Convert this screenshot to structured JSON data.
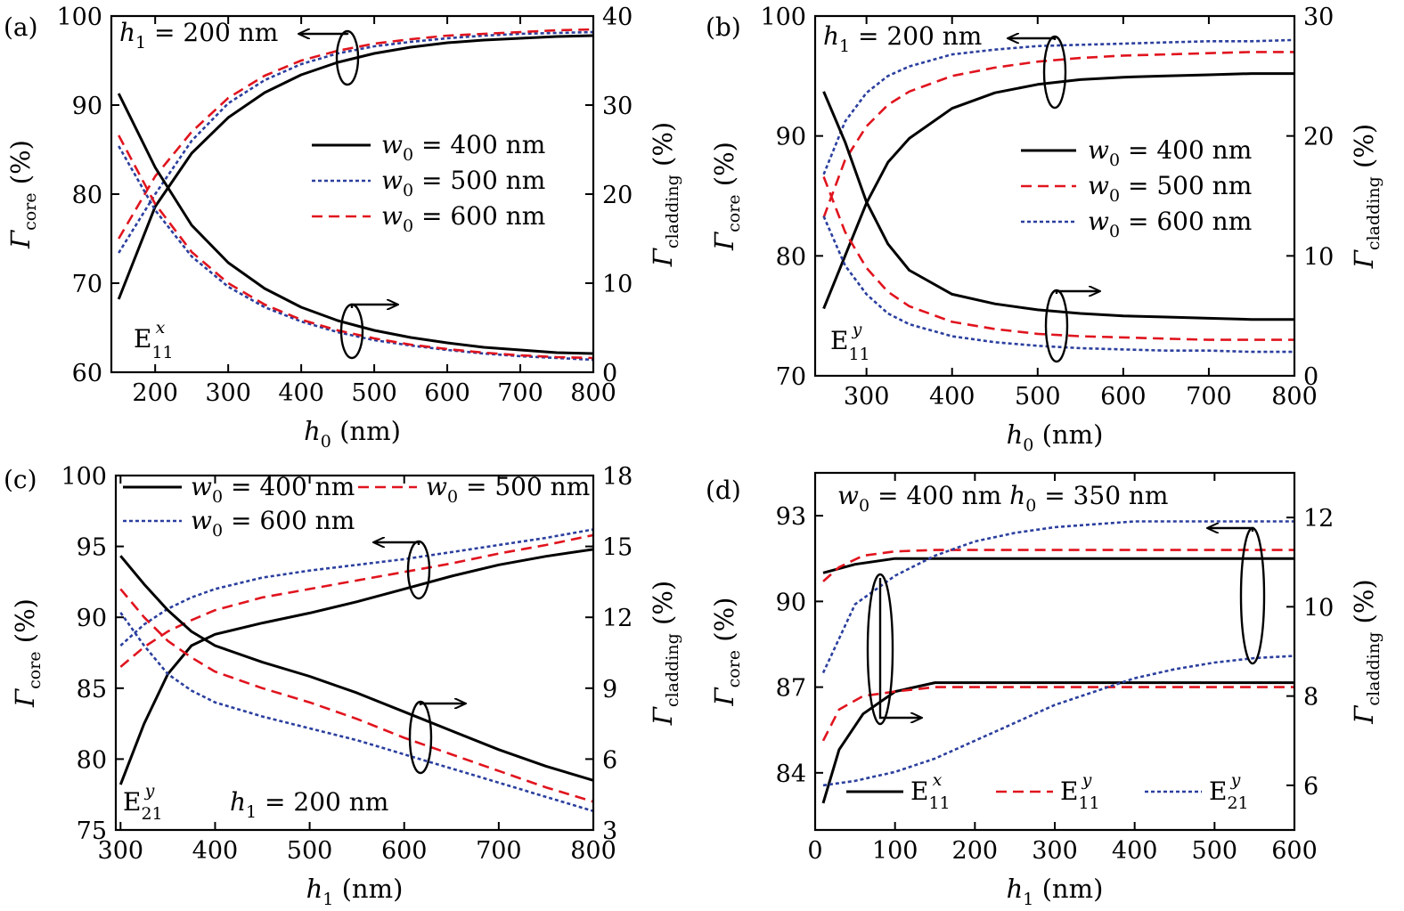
{
  "chart_data": [
    {
      "type": "line",
      "panel_label": "(a)",
      "xlabel": "h0 (nm)",
      "ylabel_left": "Γcore (%)",
      "ylabel_right": "Γcladding (%)",
      "xlim": [
        140,
        800
      ],
      "ylim_left": [
        60,
        100
      ],
      "ylim_right": [
        0,
        40
      ],
      "xticks": [
        200,
        300,
        400,
        500,
        600,
        700,
        800
      ],
      "yticks_left": [
        60,
        70,
        80,
        90,
        100
      ],
      "yticks_right": [
        0,
        10,
        20,
        30,
        40
      ],
      "annotations": [
        "h1 = 200 nm",
        "E11x"
      ],
      "legend": [
        {
          "label": "w0 = 400 nm",
          "color": "#000000",
          "style": "solid"
        },
        {
          "label": "w0 = 500 nm",
          "color": "#2b3f9e",
          "style": "dotted"
        },
        {
          "label": "w0 = 600 nm",
          "color": "#e0141e",
          "style": "dashed"
        }
      ],
      "series": [
        {
          "name": "w0 = 400 nm",
          "axis": "left",
          "color": "#000000",
          "style": "solid",
          "x": [
            150,
            200,
            250,
            300,
            350,
            400,
            450,
            500,
            550,
            600,
            650,
            700,
            750,
            800
          ],
          "y": [
            68.2,
            78.6,
            84.6,
            88.6,
            91.4,
            93.4,
            94.8,
            95.8,
            96.5,
            97.0,
            97.3,
            97.5,
            97.7,
            97.8
          ]
        },
        {
          "name": "w0 = 500 nm",
          "axis": "left",
          "color": "#2b3f9e",
          "style": "dotted",
          "x": [
            150,
            200,
            250,
            300,
            350,
            400,
            450,
            500,
            550,
            600,
            650,
            700,
            750,
            800
          ],
          "y": [
            73.4,
            80.0,
            86.0,
            90.2,
            92.8,
            94.6,
            95.8,
            96.6,
            97.1,
            97.5,
            97.8,
            98.0,
            98.1,
            98.2
          ]
        },
        {
          "name": "w0 = 600 nm",
          "axis": "left",
          "color": "#e0141e",
          "style": "dashed",
          "x": [
            150,
            200,
            250,
            300,
            350,
            400,
            450,
            500,
            550,
            600,
            650,
            700,
            750,
            800
          ],
          "y": [
            75.0,
            82.0,
            87.0,
            90.8,
            93.3,
            95.0,
            96.1,
            96.9,
            97.4,
            97.8,
            98.0,
            98.2,
            98.4,
            98.5
          ]
        },
        {
          "name": "w0 = 400 nm",
          "axis": "right",
          "color": "#000000",
          "style": "solid",
          "x": [
            150,
            200,
            250,
            300,
            350,
            400,
            450,
            500,
            550,
            600,
            650,
            700,
            750,
            800
          ],
          "y": [
            31.3,
            23.0,
            16.5,
            12.3,
            9.4,
            7.3,
            5.8,
            4.7,
            3.9,
            3.3,
            2.8,
            2.5,
            2.2,
            2.1
          ]
        },
        {
          "name": "w0 = 500 nm",
          "axis": "right",
          "color": "#2b3f9e",
          "style": "dotted",
          "x": [
            150,
            200,
            250,
            300,
            350,
            400,
            450,
            500,
            550,
            600,
            650,
            700,
            750,
            800
          ],
          "y": [
            25.4,
            18.2,
            13.0,
            9.6,
            7.3,
            5.7,
            4.5,
            3.6,
            3.0,
            2.5,
            2.1,
            1.8,
            1.6,
            1.4
          ]
        },
        {
          "name": "w0 = 600 nm",
          "axis": "right",
          "color": "#e0141e",
          "style": "dashed",
          "x": [
            150,
            200,
            250,
            300,
            350,
            400,
            450,
            500,
            550,
            600,
            650,
            700,
            750,
            800
          ],
          "y": [
            26.6,
            18.9,
            13.5,
            10.0,
            7.6,
            5.9,
            4.7,
            3.8,
            3.1,
            2.6,
            2.2,
            1.9,
            1.7,
            1.6
          ]
        }
      ]
    },
    {
      "type": "line",
      "panel_label": "(b)",
      "xlabel": "h0 (nm)",
      "ylabel_left": "Γcore (%)",
      "ylabel_right": "Γcladding (%)",
      "xlim": [
        240,
        800
      ],
      "ylim_left": [
        70,
        100
      ],
      "ylim_right": [
        0,
        30
      ],
      "xticks": [
        300,
        400,
        500,
        600,
        700,
        800
      ],
      "yticks_left": [
        70,
        80,
        90,
        100
      ],
      "yticks_right": [
        0,
        10,
        20,
        30
      ],
      "annotations": [
        "h1 = 200 nm",
        "E11y"
      ],
      "legend": [
        {
          "label": "w0 = 400 nm",
          "color": "#000000",
          "style": "solid"
        },
        {
          "label": "w0 = 500 nm",
          "color": "#e0141e",
          "style": "dashed"
        },
        {
          "label": "w0 = 600 nm",
          "color": "#2b3f9e",
          "style": "dotted"
        }
      ],
      "series": [
        {
          "name": "w0 = 400 nm",
          "axis": "left",
          "color": "#000000",
          "style": "solid",
          "x": [
            250,
            275,
            300,
            325,
            350,
            400,
            450,
            500,
            550,
            600,
            650,
            700,
            750,
            800
          ],
          "y": [
            75.6,
            80.0,
            84.4,
            87.8,
            89.8,
            92.3,
            93.6,
            94.3,
            94.7,
            94.9,
            95.0,
            95.1,
            95.2,
            95.2
          ]
        },
        {
          "name": "w0 = 500 nm",
          "axis": "left",
          "color": "#e0141e",
          "style": "dashed",
          "x": [
            250,
            275,
            300,
            325,
            350,
            400,
            450,
            500,
            550,
            600,
            650,
            700,
            750,
            800
          ],
          "y": [
            83.2,
            88.0,
            90.8,
            92.6,
            93.7,
            95.0,
            95.7,
            96.2,
            96.5,
            96.7,
            96.8,
            96.9,
            97.0,
            97.0
          ]
        },
        {
          "name": "w0 = 600 nm",
          "axis": "left",
          "color": "#2b3f9e",
          "style": "dotted",
          "x": [
            250,
            275,
            300,
            325,
            350,
            400,
            450,
            500,
            550,
            600,
            650,
            700,
            750,
            800
          ],
          "y": [
            86.8,
            91.2,
            93.6,
            95.0,
            95.8,
            96.8,
            97.2,
            97.5,
            97.6,
            97.7,
            97.8,
            97.9,
            97.9,
            98.0
          ]
        },
        {
          "name": "w0 = 400 nm",
          "axis": "right",
          "color": "#000000",
          "style": "solid",
          "x": [
            250,
            275,
            300,
            325,
            350,
            400,
            450,
            500,
            550,
            600,
            650,
            700,
            750,
            800
          ],
          "y": [
            23.7,
            19.5,
            14.5,
            11.0,
            8.8,
            6.8,
            6.0,
            5.5,
            5.2,
            5.0,
            4.9,
            4.8,
            4.7,
            4.7
          ]
        },
        {
          "name": "w0 = 500 nm",
          "axis": "right",
          "color": "#e0141e",
          "style": "dashed",
          "x": [
            250,
            275,
            300,
            325,
            350,
            400,
            450,
            500,
            550,
            600,
            650,
            700,
            750,
            800
          ],
          "y": [
            16.6,
            12.0,
            9.0,
            7.0,
            5.8,
            4.5,
            3.9,
            3.5,
            3.3,
            3.2,
            3.1,
            3.0,
            3.0,
            3.0
          ]
        },
        {
          "name": "w0 = 600 nm",
          "axis": "right",
          "color": "#2b3f9e",
          "style": "dotted",
          "x": [
            250,
            275,
            300,
            325,
            350,
            400,
            450,
            500,
            550,
            600,
            650,
            700,
            750,
            800
          ],
          "y": [
            13.3,
            9.2,
            6.8,
            5.2,
            4.3,
            3.3,
            2.8,
            2.5,
            2.3,
            2.2,
            2.1,
            2.1,
            2.0,
            2.0
          ]
        }
      ]
    },
    {
      "type": "line",
      "panel_label": "(c)",
      "xlabel": "h1 (nm)",
      "ylabel_left": "Γcore (%)",
      "ylabel_right": "Γcladding (%)",
      "xlim": [
        295,
        800
      ],
      "ylim_left": [
        75,
        100
      ],
      "ylim_right": [
        3,
        18
      ],
      "xticks": [
        300,
        400,
        500,
        600,
        700,
        800
      ],
      "yticks_left": [
        75,
        80,
        85,
        90,
        95,
        100
      ],
      "yticks_right": [
        3,
        6,
        9,
        12,
        15,
        18
      ],
      "annotations": [
        "h1 = 200 nm",
        "E21y"
      ],
      "legend": [
        {
          "label": "w0 = 400 nm",
          "color": "#000000",
          "style": "solid"
        },
        {
          "label": "w0 = 500 nm",
          "color": "#e0141e",
          "style": "dashed"
        },
        {
          "label": "w0 = 600 nm",
          "color": "#2b3f9e",
          "style": "dotted"
        }
      ],
      "series": [
        {
          "name": "w0 = 400 nm",
          "axis": "left",
          "color": "#000000",
          "style": "solid",
          "x": [
            300,
            325,
            350,
            375,
            400,
            450,
            500,
            550,
            600,
            650,
            700,
            750,
            800
          ],
          "y": [
            78.2,
            82.5,
            86.0,
            88.0,
            88.8,
            89.6,
            90.3,
            91.1,
            92.0,
            92.9,
            93.7,
            94.3,
            94.8
          ]
        },
        {
          "name": "w0 = 500 nm",
          "axis": "left",
          "color": "#e0141e",
          "style": "dashed",
          "x": [
            300,
            325,
            350,
            375,
            400,
            450,
            500,
            550,
            600,
            650,
            700,
            750,
            800
          ],
          "y": [
            86.5,
            87.9,
            89.0,
            89.8,
            90.5,
            91.4,
            92.0,
            92.6,
            93.2,
            93.8,
            94.5,
            95.1,
            95.8
          ]
        },
        {
          "name": "w0 = 600 nm",
          "axis": "left",
          "color": "#2b3f9e",
          "style": "dotted",
          "x": [
            300,
            325,
            350,
            375,
            400,
            450,
            500,
            550,
            600,
            650,
            700,
            750,
            800
          ],
          "y": [
            88.0,
            89.5,
            90.6,
            91.4,
            92.0,
            92.8,
            93.3,
            93.7,
            94.1,
            94.6,
            95.1,
            95.6,
            96.2
          ]
        },
        {
          "name": "w0 = 400 nm",
          "axis": "right",
          "color": "#000000",
          "style": "solid",
          "x": [
            300,
            325,
            350,
            375,
            400,
            450,
            500,
            550,
            600,
            650,
            700,
            750,
            800
          ],
          "y": [
            14.6,
            13.4,
            12.3,
            11.4,
            10.8,
            10.1,
            9.5,
            8.8,
            8.0,
            7.2,
            6.4,
            5.7,
            5.1
          ]
        },
        {
          "name": "w0 = 500 nm",
          "axis": "right",
          "color": "#e0141e",
          "style": "dashed",
          "x": [
            300,
            325,
            350,
            375,
            400,
            450,
            500,
            550,
            600,
            650,
            700,
            750,
            800
          ],
          "y": [
            13.2,
            12.0,
            11.0,
            10.3,
            9.7,
            9.0,
            8.4,
            7.7,
            6.9,
            6.2,
            5.5,
            4.8,
            4.2
          ]
        },
        {
          "name": "w0 = 600 nm",
          "axis": "right",
          "color": "#2b3f9e",
          "style": "dotted",
          "x": [
            300,
            325,
            350,
            375,
            400,
            450,
            500,
            550,
            600,
            650,
            700,
            750,
            800
          ],
          "y": [
            12.2,
            10.8,
            9.6,
            8.9,
            8.4,
            7.8,
            7.3,
            6.8,
            6.2,
            5.6,
            5.0,
            4.4,
            3.8
          ]
        }
      ]
    },
    {
      "type": "line",
      "panel_label": "(d)",
      "xlabel": "h1 (nm)",
      "ylabel_left": "Γcore (%)",
      "ylabel_right": "Γcladding (%)",
      "xlim": [
        0,
        600
      ],
      "ylim_left": [
        82,
        94.5
      ],
      "ylim_right": [
        5,
        13
      ],
      "xticks": [
        0,
        100,
        200,
        300,
        400,
        500,
        600
      ],
      "yticks_left": [
        84,
        87,
        90,
        93
      ],
      "yticks_right": [
        6,
        8,
        10,
        12
      ],
      "annotations": [
        "w0 = 400 nm  h0 = 350 nm"
      ],
      "legend": [
        {
          "label": "E11x",
          "color": "#000000",
          "style": "solid"
        },
        {
          "label": "E11y",
          "color": "#e0141e",
          "style": "dashed"
        },
        {
          "label": "E21y",
          "color": "#2b3f9e",
          "style": "dotted"
        }
      ],
      "series": [
        {
          "name": "E11x",
          "axis": "left",
          "color": "#000000",
          "style": "solid",
          "x": [
            10,
            50,
            100,
            150,
            200,
            300,
            400,
            500,
            600
          ],
          "y": [
            91.0,
            91.3,
            91.5,
            91.5,
            91.5,
            91.5,
            91.5,
            91.5,
            91.5
          ]
        },
        {
          "name": "E11y",
          "axis": "left",
          "color": "#e0141e",
          "style": "dashed",
          "x": [
            10,
            30,
            60,
            100,
            150,
            200,
            300,
            400,
            500,
            600
          ],
          "y": [
            90.7,
            91.2,
            91.6,
            91.75,
            91.8,
            91.8,
            91.8,
            91.8,
            91.8,
            91.8
          ]
        },
        {
          "name": "E21y",
          "axis": "left",
          "color": "#2b3f9e",
          "style": "dotted",
          "x": [
            10,
            50,
            100,
            150,
            200,
            250,
            300,
            350,
            400,
            450,
            500,
            550,
            600
          ],
          "y": [
            87.5,
            89.9,
            90.9,
            91.6,
            92.1,
            92.4,
            92.6,
            92.7,
            92.8,
            92.8,
            92.8,
            92.8,
            92.8
          ]
        },
        {
          "name": "E11x",
          "axis": "right",
          "color": "#000000",
          "style": "solid",
          "x": [
            10,
            30,
            60,
            100,
            150,
            200,
            300,
            400,
            500,
            600
          ],
          "y": [
            5.6,
            6.8,
            7.6,
            8.1,
            8.3,
            8.3,
            8.3,
            8.3,
            8.3,
            8.3
          ]
        },
        {
          "name": "E11y",
          "axis": "right",
          "color": "#e0141e",
          "style": "dashed",
          "x": [
            10,
            30,
            60,
            100,
            150,
            200,
            300,
            400,
            500,
            600
          ],
          "y": [
            7.0,
            7.7,
            8.0,
            8.1,
            8.2,
            8.2,
            8.2,
            8.2,
            8.2,
            8.2
          ]
        },
        {
          "name": "E21y",
          "axis": "right",
          "color": "#2b3f9e",
          "style": "dotted",
          "x": [
            10,
            50,
            100,
            150,
            200,
            250,
            300,
            350,
            400,
            450,
            500,
            550,
            600
          ],
          "y": [
            6.0,
            6.1,
            6.3,
            6.6,
            7.0,
            7.4,
            7.8,
            8.1,
            8.4,
            8.6,
            8.75,
            8.85,
            8.9
          ]
        }
      ]
    }
  ]
}
